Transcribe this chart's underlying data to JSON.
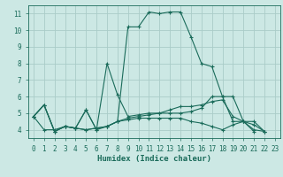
{
  "title": "",
  "xlabel": "Humidex (Indice chaleur)",
  "bg_color": "#cce8e4",
  "grid_color": "#aaccc8",
  "line_color": "#1a6b5a",
  "xlim": [
    -0.5,
    23.5
  ],
  "ylim": [
    3.5,
    11.5
  ],
  "xticks": [
    0,
    1,
    2,
    3,
    4,
    5,
    6,
    7,
    8,
    9,
    10,
    11,
    12,
    13,
    14,
    15,
    16,
    17,
    18,
    19,
    20,
    21,
    22,
    23
  ],
  "yticks": [
    4,
    5,
    6,
    7,
    8,
    9,
    10,
    11
  ],
  "series": [
    {
      "x": [
        0,
        1,
        2,
        3,
        4,
        5,
        6,
        7,
        8,
        9,
        10,
        11,
        12,
        13,
        14,
        15,
        16,
        17,
        18,
        19,
        20,
        21,
        22
      ],
      "y": [
        4.8,
        5.5,
        3.9,
        4.2,
        4.1,
        5.2,
        4.0,
        4.2,
        4.5,
        10.2,
        10.2,
        11.1,
        11.0,
        11.1,
        11.1,
        9.6,
        8.0,
        7.8,
        6.0,
        6.0,
        4.5,
        4.5,
        3.9
      ]
    },
    {
      "x": [
        0,
        1,
        2,
        3,
        4,
        5,
        6,
        7,
        8,
        9,
        10,
        11,
        12,
        13,
        14,
        15,
        16,
        17,
        18,
        19,
        20,
        21
      ],
      "y": [
        4.8,
        5.5,
        3.9,
        4.2,
        4.1,
        5.2,
        4.0,
        8.0,
        6.1,
        4.8,
        4.9,
        5.0,
        5.0,
        5.0,
        5.0,
        5.1,
        5.3,
        6.0,
        6.0,
        4.5,
        4.5,
        3.9
      ]
    },
    {
      "x": [
        0,
        1,
        2,
        3,
        4,
        5,
        6,
        7,
        8,
        9,
        10,
        11,
        12,
        13,
        14,
        15,
        16,
        17,
        18,
        19,
        20,
        21,
        22
      ],
      "y": [
        4.8,
        4.0,
        4.0,
        4.2,
        4.1,
        4.0,
        4.1,
        4.2,
        4.5,
        4.6,
        4.7,
        4.7,
        4.7,
        4.7,
        4.7,
        4.5,
        4.4,
        4.2,
        4.0,
        4.3,
        4.5,
        4.0,
        3.9
      ]
    },
    {
      "x": [
        0,
        1,
        2,
        3,
        4,
        5,
        6,
        7,
        8,
        9,
        10,
        11,
        12,
        13,
        14,
        15,
        16,
        17,
        18,
        19,
        20,
        21,
        22
      ],
      "y": [
        4.8,
        5.5,
        3.9,
        4.2,
        4.1,
        4.0,
        4.1,
        4.2,
        4.5,
        4.7,
        4.8,
        4.9,
        5.0,
        5.2,
        5.4,
        5.4,
        5.5,
        5.7,
        5.8,
        4.8,
        4.5,
        4.3,
        3.9
      ]
    }
  ],
  "tick_fontsize": 5.5,
  "xlabel_fontsize": 6.5,
  "marker_size": 2.5,
  "linewidth": 0.8
}
